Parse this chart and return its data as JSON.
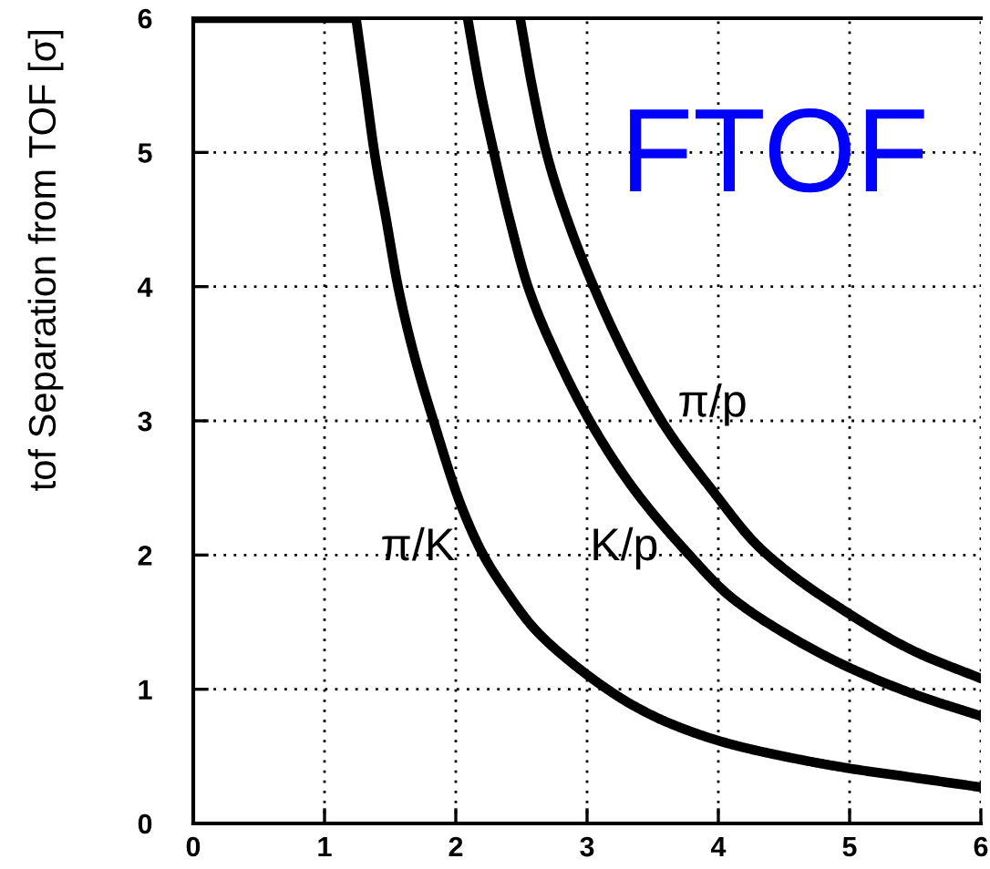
{
  "chart_data": {
    "type": "line",
    "title": "FTOF",
    "ylabel": "tof Separation from TOF [σ]",
    "xlim": [
      0,
      6
    ],
    "ylim": [
      0,
      6
    ],
    "xticks": [
      0,
      1,
      2,
      3,
      4,
      5,
      6
    ],
    "yticks": [
      0,
      1,
      2,
      3,
      4,
      5,
      6
    ],
    "grid": true,
    "series": [
      {
        "name": "π/K",
        "color": "#000000",
        "x": [
          0,
          1.24,
          1.31,
          1.38,
          1.47,
          1.56,
          1.68,
          1.83,
          2.04,
          2.21,
          2.37,
          2.6,
          2.88,
          3.2,
          3.35,
          3.62,
          4.06,
          4.5,
          5.0,
          5.5,
          6.0
        ],
        "values": [
          6.0,
          6.0,
          5.5,
          5.0,
          4.5,
          4.0,
          3.5,
          3.0,
          2.37,
          2.0,
          1.75,
          1.45,
          1.2,
          0.97,
          0.88,
          0.75,
          0.6,
          0.5,
          0.41,
          0.34,
          0.27
        ]
      },
      {
        "name": "K/p",
        "color": "#000000",
        "x": [
          2.09,
          2.18,
          2.29,
          2.41,
          2.55,
          2.76,
          3.02,
          3.35,
          3.78,
          4.08,
          4.5,
          5.0,
          5.5,
          6.0
        ],
        "values": [
          6.0,
          5.5,
          5.0,
          4.5,
          4.0,
          3.5,
          3.0,
          2.5,
          2.0,
          1.7,
          1.42,
          1.16,
          0.96,
          0.8
        ]
      },
      {
        "name": "π/p",
        "color": "#000000",
        "x": [
          2.49,
          2.58,
          2.69,
          2.85,
          3.05,
          3.21,
          3.39,
          3.6,
          3.94,
          4.32,
          5.0,
          5.5,
          6.0
        ],
        "values": [
          6.0,
          5.5,
          5.0,
          4.5,
          4.0,
          3.65,
          3.3,
          2.95,
          2.5,
          2.05,
          1.56,
          1.28,
          1.08
        ]
      }
    ]
  }
}
